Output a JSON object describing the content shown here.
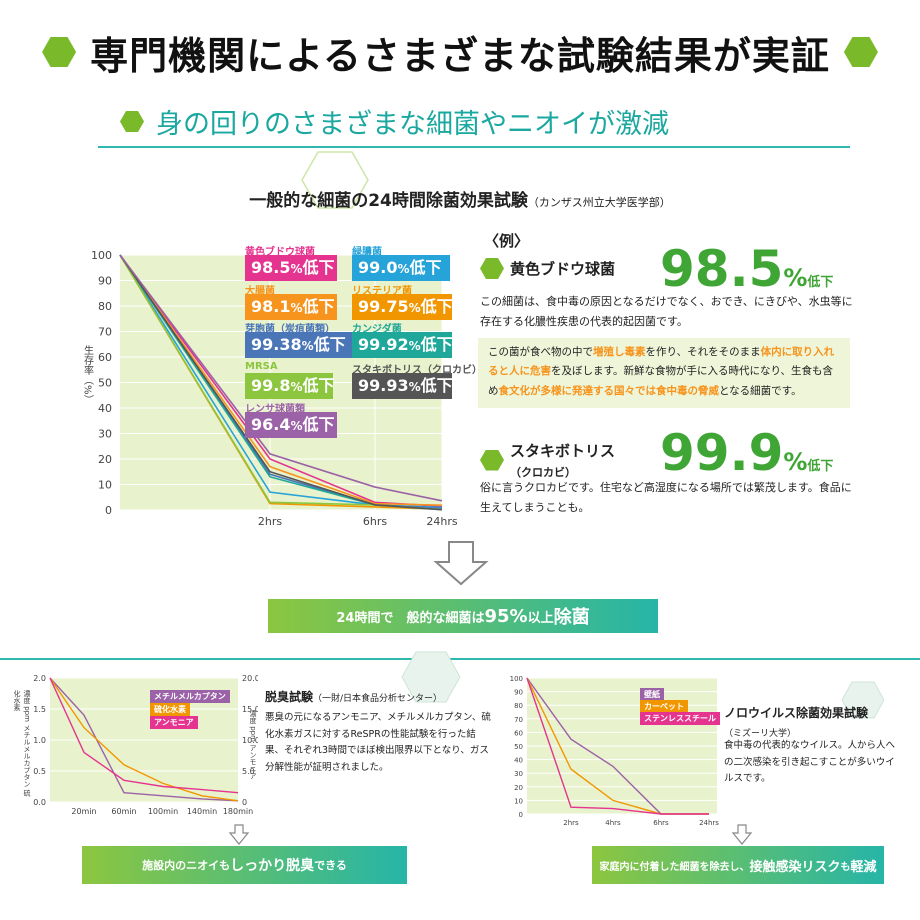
{
  "header": {
    "title": "専門機関によるさまざまな試験結果が実証",
    "subtitle": "身の回りのさまざまな細菌やニオイが激減"
  },
  "main_chart": {
    "title": "一般的な細菌の24時間除菌効果試験",
    "source": "（カンザス州立大学医学部）",
    "ylabel": "生存率（%）",
    "labels": [
      {
        "name": "黄色ブドウ球菌",
        "value": "98.5%低下",
        "color": "#e5348f"
      },
      {
        "name": "緑膿菌",
        "value": "99.0%低下",
        "color": "#26a3d9"
      },
      {
        "name": "大腸菌",
        "value": "98.1%低下",
        "color": "#f7941d"
      },
      {
        "name": "リステリア菌",
        "value": "99.75%低下",
        "color": "#f29600"
      },
      {
        "name": "芽胞菌（炭疽菌類）",
        "value": "99.38%低下",
        "color": "#4a76b8"
      },
      {
        "name": "カンジダ菌",
        "value": "99.92%低下",
        "color": "#1fa89a"
      },
      {
        "name": "MRSA",
        "value": "99.8%低下",
        "color": "#8cc63f"
      },
      {
        "name": "スタキボトリス（クロカビ）",
        "value": "99.93%低下",
        "color": "#555555"
      },
      {
        "name": "レンサ球菌類",
        "value": "96.4%低下",
        "color": "#9b62a8"
      }
    ]
  },
  "example": {
    "head": "〈例〉",
    "item1": {
      "name": "黄色ブドウ球菌",
      "big": "98.5",
      "pct": "%",
      "down": "低下",
      "desc": "この細菌は、食中毒の原因となるだけでなく、おでき、にきびや、水虫等に存在する化膿性疾患の代表的起因菌です。",
      "highlight": [
        {
          "t": "この菌が食べ物の中で",
          "h": false
        },
        {
          "t": "増殖し毒素",
          "h": true
        },
        {
          "t": "を作り、それをそのまま",
          "h": false
        },
        {
          "t": "体内に取り入れると人に危害",
          "h": true
        },
        {
          "t": "を及ぼします。新鮮な食物が手に入る時代になり、生食も含め",
          "h": false
        },
        {
          "t": "食文化が多様に発達する国々では食中毒の脅威",
          "h": true
        },
        {
          "t": "となる細菌です。",
          "h": false
        }
      ]
    },
    "item2": {
      "name": "スタキボトリス",
      "name_sub": "（クロカビ）",
      "big": "99.9",
      "pct": "%",
      "down": "低下",
      "desc": "俗に言うクロカビです。住宅など高湿度になる場所では繁茂します。食品に生えてしまうことも。"
    }
  },
  "banner_main": {
    "prefix": "24時間で　般的な細菌は",
    "big": "95%",
    "mid": "以上",
    "end": "除菌"
  },
  "odor": {
    "title": "脱臭試験",
    "source": "（一財/日本食品分析センター）",
    "desc": "悪臭の元になるアンモニア、メチルメルカプタン、硫化水素ガスに対するReSPRの性能試験を行った結果、それぞれ3時間でほぼ検出限界以下となり、ガス分解性能が証明されました。",
    "ylabel_left": "濃度 ppm メチルメルカプタン 硫化水素",
    "ylabel_right": "濃度 ppm アンモニア",
    "legend": [
      {
        "name": "メチルメルカプタン",
        "color": "#9b62a8"
      },
      {
        "name": "硫化水素",
        "color": "#f29600"
      },
      {
        "name": "アンモニア",
        "color": "#e5348f"
      }
    ],
    "banner": {
      "a": "施設内のニオイも",
      "b": "しっかり脱臭",
      "c": "できる"
    }
  },
  "noro": {
    "title": "ノロウイルス除菌効果試験",
    "source": "（ミズーリ大学）",
    "desc": "食中毒の代表的なウイルス。人から人への二次感染を引き起こすことが多いウイルスです。",
    "legend": [
      {
        "name": "壁紙",
        "color": "#9b62a8"
      },
      {
        "name": "カーペット",
        "color": "#f29600"
      },
      {
        "name": "ステンレススチール",
        "color": "#e5348f"
      }
    ],
    "banner": {
      "a": "家庭内に付着した細菌を除去し、",
      "b": "接触感染リスク",
      "c": "も",
      "d": "軽減"
    }
  },
  "chart_data": [
    {
      "type": "line",
      "title": "一般的な細菌の24時間除菌効果試験",
      "x": [
        "0",
        "2hrs",
        "6hrs",
        "24hrs"
      ],
      "ylim": [
        0,
        100
      ],
      "yticks": [
        0,
        10,
        20,
        30,
        40,
        50,
        60,
        70,
        80,
        90,
        100
      ],
      "ylabel": "生存率（%）",
      "grid": true,
      "series": [
        {
          "name": "黄色ブドウ球菌",
          "color": "#e5348f",
          "values": [
            100,
            20,
            3,
            1.5
          ]
        },
        {
          "name": "緑膿菌",
          "color": "#26a3d9",
          "values": [
            100,
            7,
            2,
            1
          ]
        },
        {
          "name": "大腸菌",
          "color": "#f7941d",
          "values": [
            100,
            17,
            2.5,
            1.9
          ]
        },
        {
          "name": "リステリア菌",
          "color": "#f29600",
          "values": [
            100,
            2.5,
            1.2,
            0.3
          ]
        },
        {
          "name": "芽胞菌（炭疽菌類）",
          "color": "#4a76b8",
          "values": [
            100,
            14,
            2,
            0.6
          ]
        },
        {
          "name": "カンジダ菌",
          "color": "#1fa89a",
          "values": [
            100,
            13,
            2,
            0.1
          ]
        },
        {
          "name": "MRSA",
          "color": "#8cc63f",
          "values": [
            100,
            3,
            2,
            0.2
          ]
        },
        {
          "name": "スタキボトリス（クロカビ）",
          "color": "#555555",
          "values": [
            100,
            15,
            2,
            0.1
          ]
        },
        {
          "name": "レンサ球菌類",
          "color": "#9b62a8",
          "values": [
            100,
            22,
            9,
            3.6
          ]
        }
      ]
    },
    {
      "type": "line",
      "title": "脱臭試験",
      "x": [
        "0",
        "20min",
        "60min",
        "100min",
        "140min",
        "180min"
      ],
      "ylim_left": [
        0,
        2.0
      ],
      "ylim_right": [
        0,
        20.0
      ],
      "yticks_left": [
        0,
        0.5,
        1.0,
        1.5,
        2.0
      ],
      "yticks_right": [
        0,
        5.0,
        10.0,
        15.0,
        20.0
      ],
      "series": [
        {
          "name": "メチルメルカプタン",
          "color": "#9b62a8",
          "axis": "left",
          "values": [
            2.0,
            1.4,
            0.15,
            0.1,
            0.05,
            0.02
          ]
        },
        {
          "name": "硫化水素",
          "color": "#f29600",
          "axis": "left",
          "values": [
            2.0,
            1.2,
            0.6,
            0.3,
            0.1,
            0.02
          ]
        },
        {
          "name": "アンモニア",
          "color": "#e5348f",
          "axis": "right",
          "values": [
            20.0,
            8.0,
            3.5,
            2.5,
            2.0,
            1.5
          ]
        }
      ]
    },
    {
      "type": "line",
      "title": "ノロウイルス除菌効果試験",
      "x": [
        "0",
        "2hrs",
        "4hrs",
        "6hrs",
        "24hrs"
      ],
      "ylim": [
        0,
        100
      ],
      "yticks": [
        0,
        10,
        20,
        30,
        40,
        50,
        60,
        70,
        80,
        90,
        100
      ],
      "series": [
        {
          "name": "壁紙",
          "color": "#9b62a8",
          "values": [
            100,
            55,
            35,
            0,
            0
          ]
        },
        {
          "name": "カーペット",
          "color": "#f29600",
          "values": [
            100,
            33,
            10,
            0,
            0
          ]
        },
        {
          "name": "ステンレススチール",
          "color": "#e5348f",
          "values": [
            100,
            5,
            4,
            0,
            0
          ]
        }
      ]
    }
  ]
}
